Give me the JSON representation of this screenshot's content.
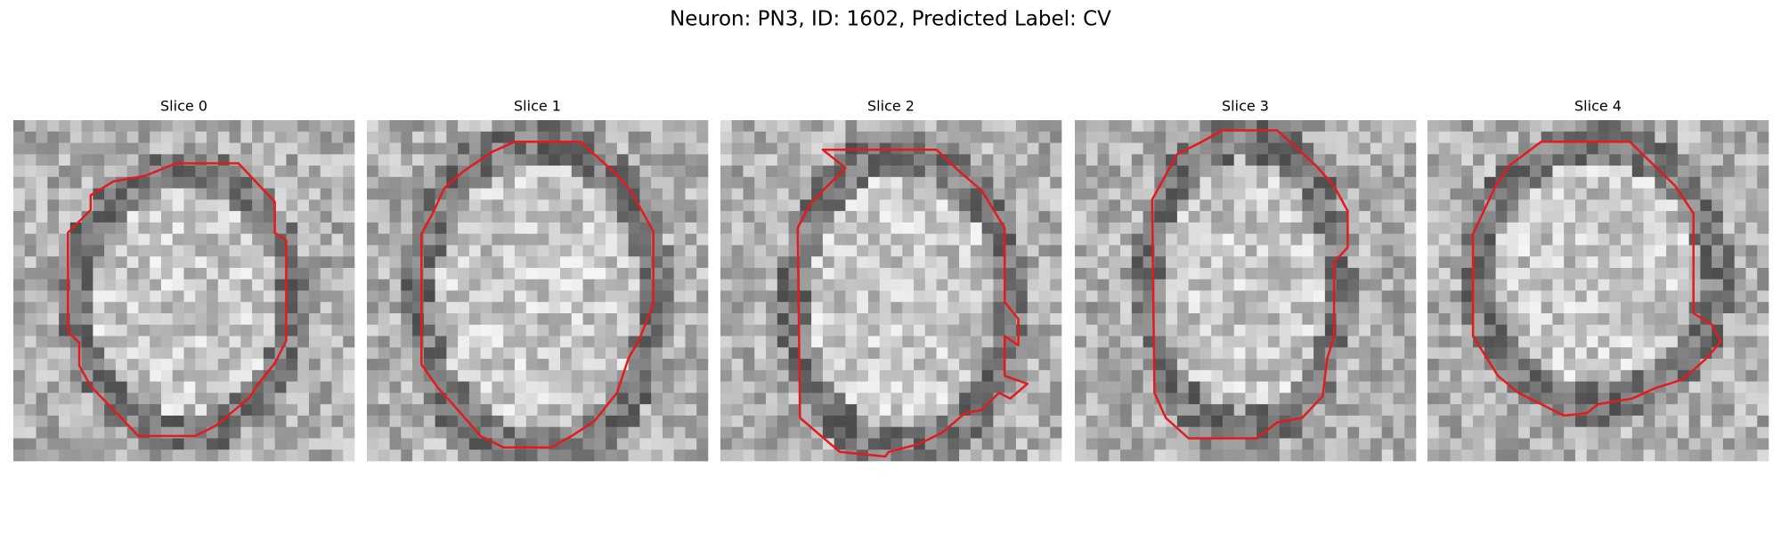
{
  "title": "Neuron: PN3, ID: 1602, Predicted Label: CV",
  "panels": [
    {
      "title": "Slice 0"
    },
    {
      "title": "Slice 1"
    },
    {
      "title": "Slice 2"
    },
    {
      "title": "Slice 3"
    },
    {
      "title": "Slice 4"
    }
  ]
}
